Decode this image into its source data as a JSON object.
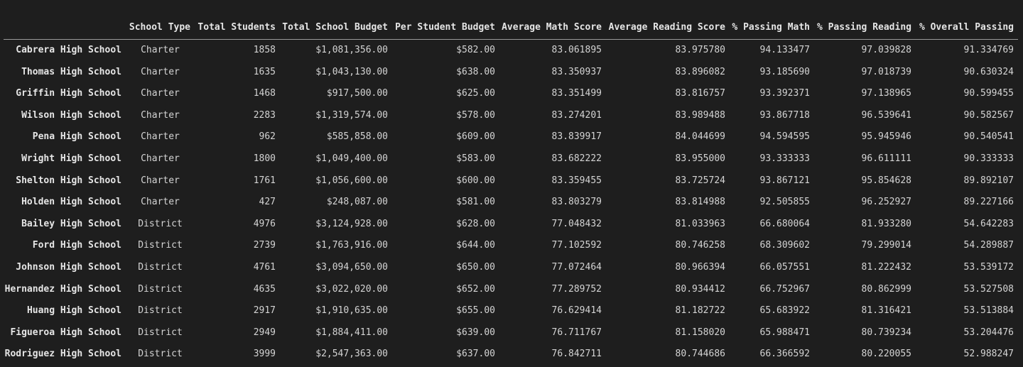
{
  "table": {
    "columns": [
      "",
      "School Type",
      "Total Students",
      "Total School Budget",
      "Per Student Budget",
      "Average Math Score",
      "Average Reading Score",
      "% Passing Math",
      "% Passing Reading",
      "% Overall Passing"
    ],
    "rows": [
      [
        "Cabrera High School",
        "Charter",
        "1858",
        "$1,081,356.00",
        "$582.00",
        "83.061895",
        "83.975780",
        "94.133477",
        "97.039828",
        "91.334769"
      ],
      [
        "Thomas High School",
        "Charter",
        "1635",
        "$1,043,130.00",
        "$638.00",
        "83.350937",
        "83.896082",
        "93.185690",
        "97.018739",
        "90.630324"
      ],
      [
        "Griffin High School",
        "Charter",
        "1468",
        "$917,500.00",
        "$625.00",
        "83.351499",
        "83.816757",
        "93.392371",
        "97.138965",
        "90.599455"
      ],
      [
        "Wilson High School",
        "Charter",
        "2283",
        "$1,319,574.00",
        "$578.00",
        "83.274201",
        "83.989488",
        "93.867718",
        "96.539641",
        "90.582567"
      ],
      [
        "Pena High School",
        "Charter",
        "962",
        "$585,858.00",
        "$609.00",
        "83.839917",
        "84.044699",
        "94.594595",
        "95.945946",
        "90.540541"
      ],
      [
        "Wright High School",
        "Charter",
        "1800",
        "$1,049,400.00",
        "$583.00",
        "83.682222",
        "83.955000",
        "93.333333",
        "96.611111",
        "90.333333"
      ],
      [
        "Shelton High School",
        "Charter",
        "1761",
        "$1,056,600.00",
        "$600.00",
        "83.359455",
        "83.725724",
        "93.867121",
        "95.854628",
        "89.892107"
      ],
      [
        "Holden High School",
        "Charter",
        "427",
        "$248,087.00",
        "$581.00",
        "83.803279",
        "83.814988",
        "92.505855",
        "96.252927",
        "89.227166"
      ],
      [
        "Bailey High School",
        "District",
        "4976",
        "$3,124,928.00",
        "$628.00",
        "77.048432",
        "81.033963",
        "66.680064",
        "81.933280",
        "54.642283"
      ],
      [
        "Ford High School",
        "District",
        "2739",
        "$1,763,916.00",
        "$644.00",
        "77.102592",
        "80.746258",
        "68.309602",
        "79.299014",
        "54.289887"
      ],
      [
        "Johnson High School",
        "District",
        "4761",
        "$3,094,650.00",
        "$650.00",
        "77.072464",
        "80.966394",
        "66.057551",
        "81.222432",
        "53.539172"
      ],
      [
        "Hernandez High School",
        "District",
        "4635",
        "$3,022,020.00",
        "$652.00",
        "77.289752",
        "80.934412",
        "66.752967",
        "80.862999",
        "53.527508"
      ],
      [
        "Huang High School",
        "District",
        "2917",
        "$1,910,635.00",
        "$655.00",
        "76.629414",
        "81.182722",
        "65.683922",
        "81.316421",
        "53.513884"
      ],
      [
        "Figueroa High School",
        "District",
        "2949",
        "$1,884,411.00",
        "$639.00",
        "76.711767",
        "81.158020",
        "65.988471",
        "80.739234",
        "53.204476"
      ],
      [
        "Rodriguez High School",
        "District",
        "3999",
        "$2,547,363.00",
        "$637.00",
        "76.842711",
        "80.744686",
        "66.366592",
        "80.220055",
        "52.988247"
      ]
    ]
  },
  "colors": {
    "background": "#1e1e1e",
    "text": "#d4d4d4",
    "header_rule": "#9a9a9a"
  }
}
